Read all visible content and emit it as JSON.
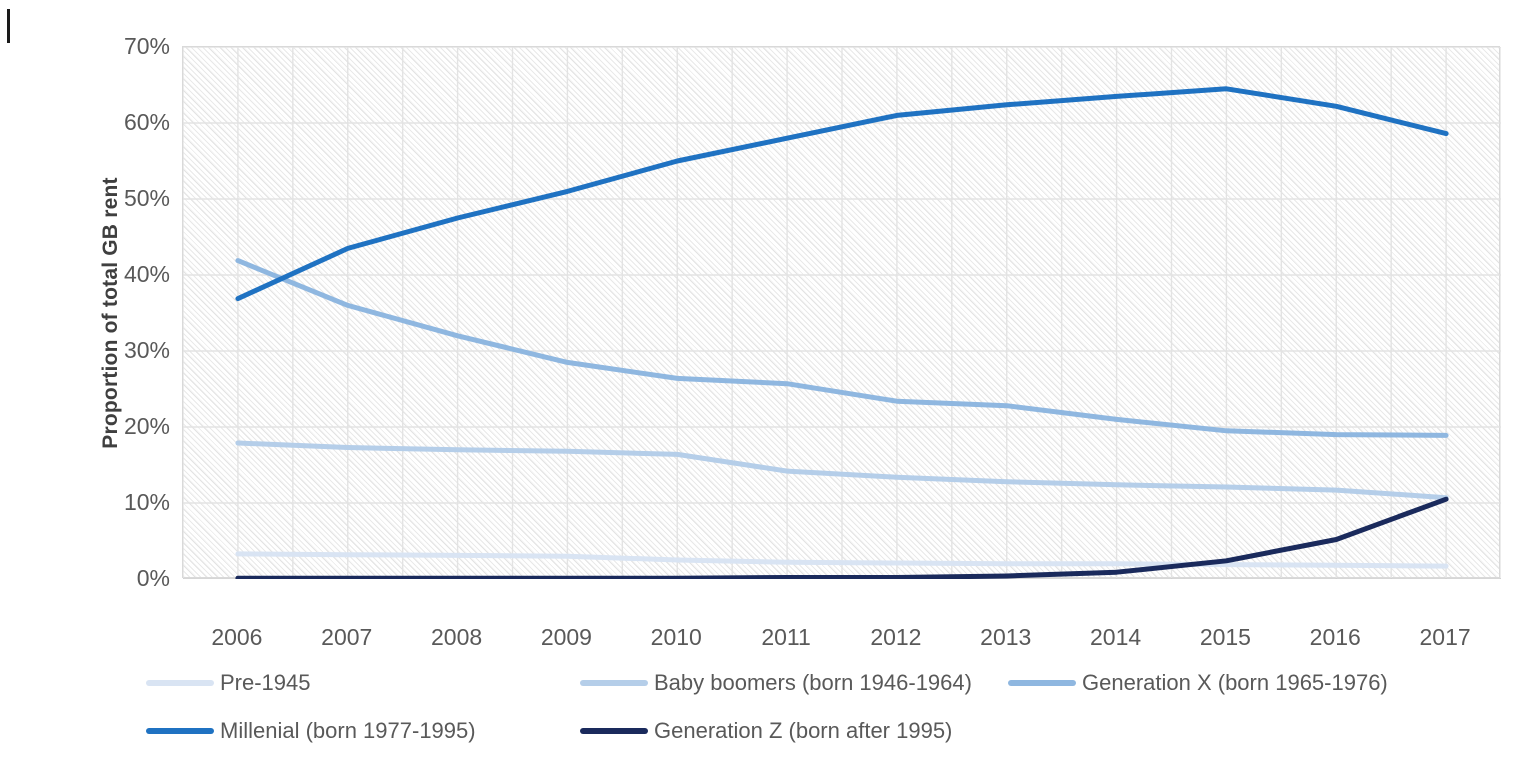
{
  "chart_data": {
    "type": "line",
    "title": "",
    "xlabel": "",
    "ylabel": "Proportion of total GB rent",
    "ylim": [
      0,
      70
    ],
    "ytick_step": 10,
    "yticks_top_to_bottom": [
      "70%",
      "60%",
      "50%",
      "40%",
      "30%",
      "20%",
      "10%",
      "0%"
    ],
    "grid": "major horizontal every 10%, vertical at category and mid-category positions, hatched plot background",
    "legend_position": "bottom, two rows",
    "categories": [
      "2006",
      "2007",
      "2008",
      "2009",
      "2010",
      "2011",
      "2012",
      "2013",
      "2014",
      "2015",
      "2016",
      "2017"
    ],
    "series": [
      {
        "name": "Pre-1945",
        "color": "#D9E4F3",
        "values": [
          3.3,
          3.2,
          3.1,
          3.0,
          2.5,
          2.2,
          2.1,
          2.0,
          2.0,
          1.9,
          1.8,
          1.7
        ]
      },
      {
        "name": "Baby boomers (born 1946-1964)",
        "color": "#B5CEE9",
        "values": [
          17.9,
          17.3,
          17.0,
          16.8,
          16.4,
          14.2,
          13.4,
          12.8,
          12.4,
          12.1,
          11.7,
          10.7
        ]
      },
      {
        "name": "Generation X (born 1965-1976)",
        "color": "#8FB7E0",
        "values": [
          41.9,
          36.0,
          32.0,
          28.5,
          26.4,
          25.7,
          23.4,
          22.8,
          21.0,
          19.5,
          19.0,
          18.9
        ]
      },
      {
        "name": "Millenial (born 1977-1995)",
        "color": "#1F72C2",
        "values": [
          36.9,
          43.5,
          47.5,
          51.0,
          55.0,
          58.0,
          61.0,
          62.4,
          63.5,
          64.5,
          62.2,
          58.6
        ]
      },
      {
        "name": "Generation Z (born after 1995)",
        "color": "#1A2A5C",
        "values": [
          0.1,
          0.1,
          0.1,
          0.1,
          0.1,
          0.2,
          0.2,
          0.4,
          0.9,
          2.4,
          5.2,
          10.5
        ]
      }
    ]
  },
  "colors": {
    "gridline": "#e3e3e3",
    "plot_border": "#d9d9d9",
    "axis_line": "#c9c9c9",
    "tick_text": "#595959",
    "axis_title_text": "#3f3f3f"
  }
}
